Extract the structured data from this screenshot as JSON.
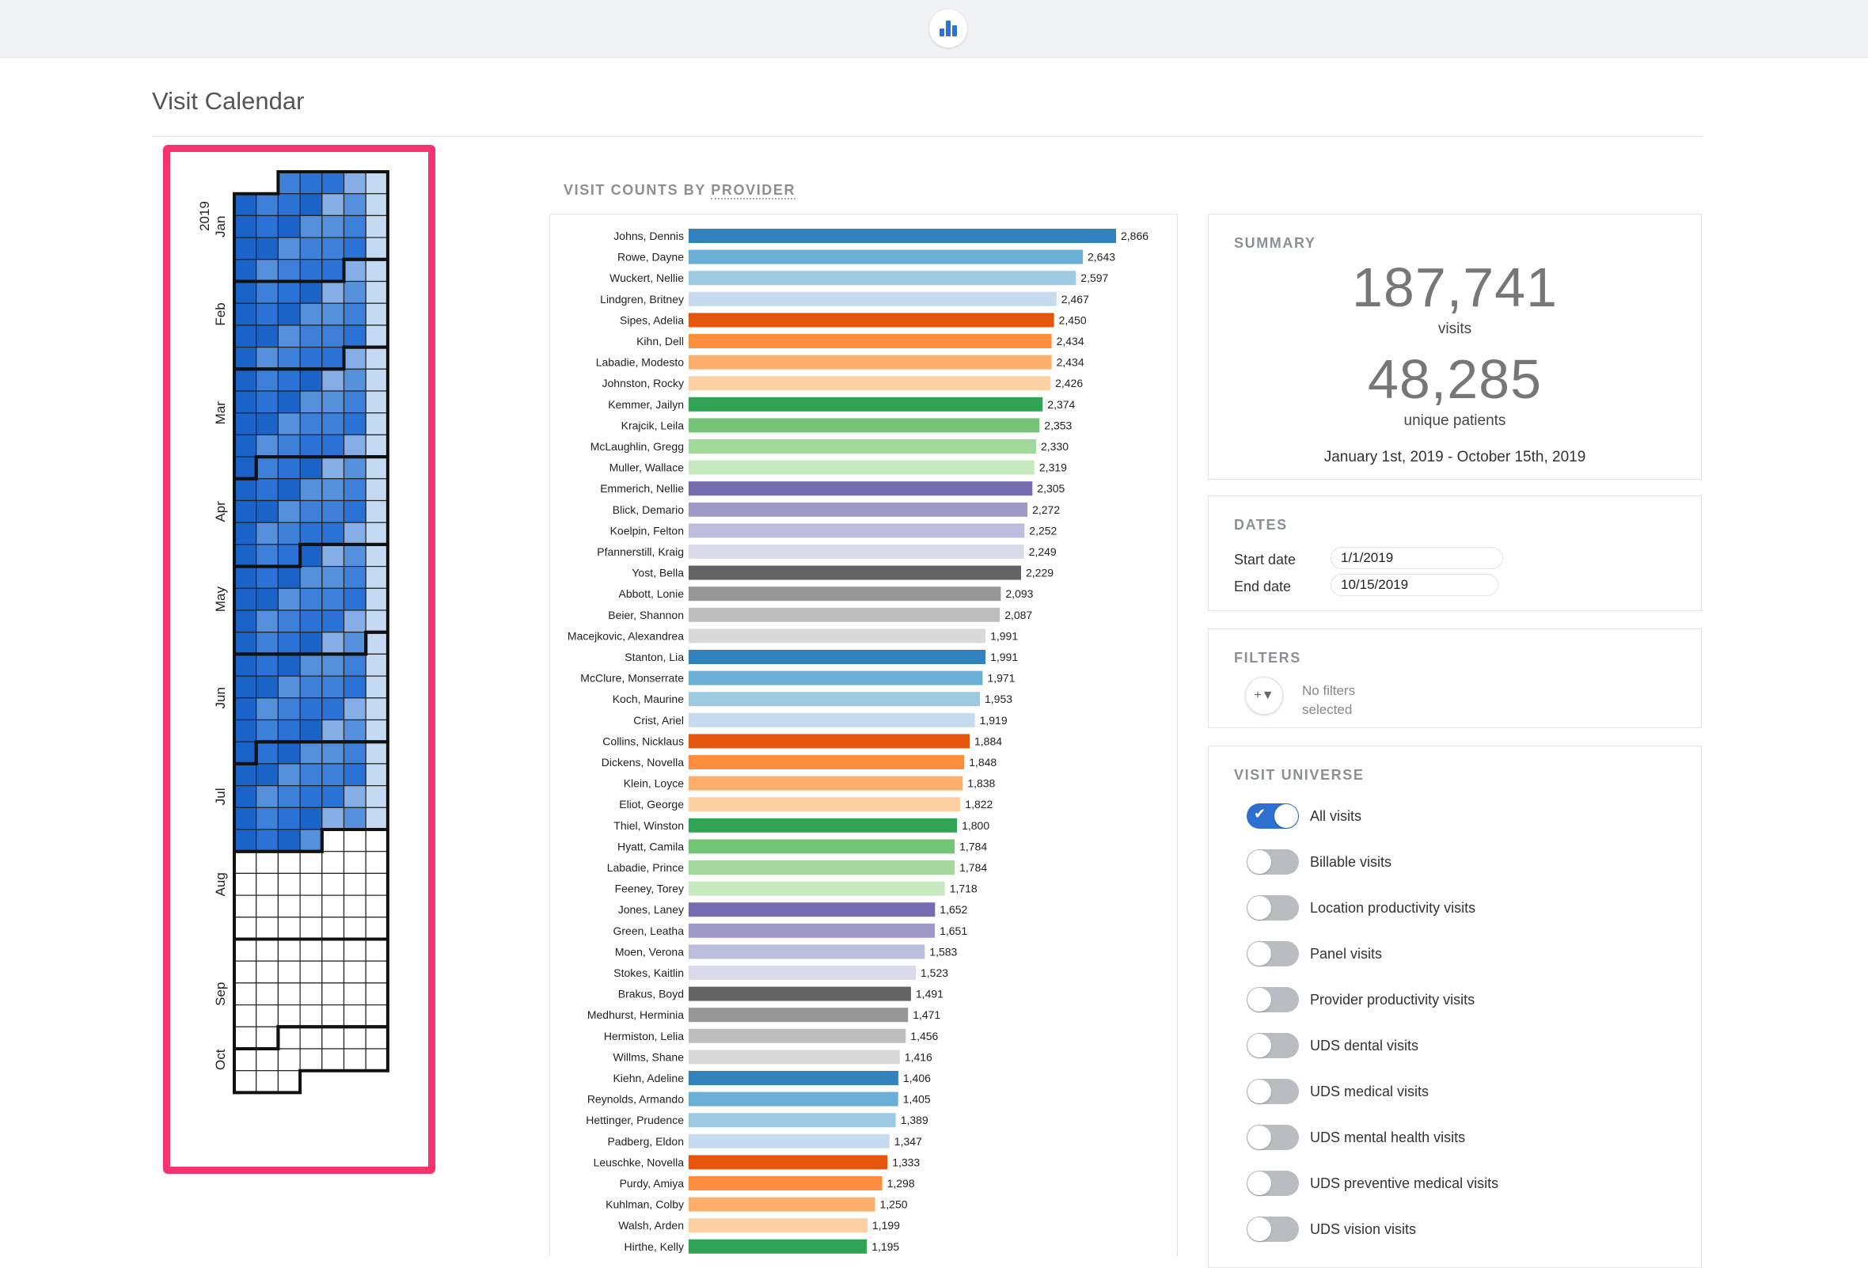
{
  "page": {
    "title": "Visit Calendar"
  },
  "calendar": {
    "year": "2019",
    "months": [
      "Jan",
      "Feb",
      "Mar",
      "Apr",
      "May",
      "Jun",
      "Jul",
      "Aug",
      "Sep",
      "Oct"
    ]
  },
  "chart_section": {
    "label_prefix": "VISIT COUNTS BY ",
    "label_link": "PROVIDER"
  },
  "chart_data": {
    "type": "bar",
    "orientation": "horizontal",
    "categories": [
      "Johns, Dennis",
      "Rowe, Dayne",
      "Wuckert, Nellie",
      "Lindgren, Britney",
      "Sipes, Adelia",
      "Kihn, Dell",
      "Labadie, Modesto",
      "Johnston, Rocky",
      "Kemmer, Jailyn",
      "Krajcik, Leila",
      "McLaughlin, Gregg",
      "Muller, Wallace",
      "Emmerich, Nellie",
      "Blick, Demario",
      "Koelpin, Felton",
      "Pfannerstill, Kraig",
      "Yost, Bella",
      "Abbott, Lonie",
      "Beier, Shannon",
      "Macejkovic, Alexandrea",
      "Stanton, Lia",
      "McClure, Monserrate",
      "Koch, Maurine",
      "Crist, Ariel",
      "Collins, Nicklaus",
      "Dickens, Novella",
      "Klein, Loyce",
      "Eliot, George",
      "Thiel, Winston",
      "Hyatt, Camila",
      "Labadie, Prince",
      "Feeney, Torey",
      "Jones, Laney",
      "Green, Leatha",
      "Moen, Verona",
      "Stokes, Kaitlin",
      "Brakus, Boyd",
      "Medhurst, Herminia",
      "Hermiston, Lelia",
      "Willms, Shane",
      "Kiehn, Adeline",
      "Reynolds, Armando",
      "Hettinger, Prudence",
      "Padberg, Eldon",
      "Leuschke, Novella",
      "Purdy, Amiya",
      "Kuhlman, Colby",
      "Walsh, Arden",
      "Hirthe, Kelly"
    ],
    "values": [
      2866,
      2643,
      2597,
      2467,
      2450,
      2434,
      2434,
      2426,
      2374,
      2353,
      2330,
      2319,
      2305,
      2272,
      2252,
      2249,
      2229,
      2093,
      2087,
      1991,
      1991,
      1971,
      1953,
      1919,
      1884,
      1848,
      1838,
      1822,
      1800,
      1784,
      1784,
      1718,
      1652,
      1651,
      1583,
      1523,
      1491,
      1471,
      1456,
      1416,
      1406,
      1405,
      1389,
      1347,
      1333,
      1298,
      1250,
      1199,
      1195
    ],
    "value_labels": [
      "2,866",
      "2,643",
      "2,597",
      "2,467",
      "2,450",
      "2,434",
      "2,434",
      "2,426",
      "2,374",
      "2,353",
      "2,330",
      "2,319",
      "2,305",
      "2,272",
      "2,252",
      "2,249",
      "2,229",
      "2,093",
      "2,087",
      "1,991",
      "1,991",
      "1,971",
      "1,953",
      "1,919",
      "1,884",
      "1,848",
      "1,838",
      "1,822",
      "1,800",
      "1,784",
      "1,784",
      "1,718",
      "1,652",
      "1,651",
      "1,583",
      "1,523",
      "1,491",
      "1,471",
      "1,456",
      "1,416",
      "1,406",
      "1,405",
      "1,389",
      "1,347",
      "1,333",
      "1,298",
      "1,250",
      "1,199",
      "1,195"
    ],
    "palette": [
      "#3182bd",
      "#6baed6",
      "#9ecae1",
      "#c6dbef",
      "#e6550d",
      "#fd8d3c",
      "#fdae6b",
      "#fdd0a2",
      "#31a354",
      "#74c476",
      "#a1d99b",
      "#c7e9c0",
      "#756bb1",
      "#9e9ac8",
      "#bcbddc",
      "#dadaeb",
      "#636363",
      "#969696",
      "#bdbdbd",
      "#d9d9d9"
    ],
    "xlim": [
      0,
      2866
    ]
  },
  "summary": {
    "label": "SUMMARY",
    "visits": "187,741",
    "visits_caption": "visits",
    "patients": "48,285",
    "patients_caption": "unique patients",
    "date_range": "January 1st, 2019 - October 15th, 2019"
  },
  "dates": {
    "label": "DATES",
    "start_label": "Start date",
    "start_value": "1/1/2019",
    "end_label": "End date",
    "end_value": "10/15/2019"
  },
  "filters": {
    "label": "FILTERS",
    "add_icon": "+▼",
    "empty_text": "No filters selected"
  },
  "visit_universe": {
    "label": "VISIT UNIVERSE",
    "options": [
      {
        "label": "All visits",
        "on": true
      },
      {
        "label": "Billable visits",
        "on": false
      },
      {
        "label": "Location productivity visits",
        "on": false
      },
      {
        "label": "Panel visits",
        "on": false
      },
      {
        "label": "Provider productivity visits",
        "on": false
      },
      {
        "label": "UDS dental visits",
        "on": false
      },
      {
        "label": "UDS medical visits",
        "on": false
      },
      {
        "label": "UDS mental health visits",
        "on": false
      },
      {
        "label": "UDS preventive medical visits",
        "on": false
      },
      {
        "label": "UDS vision visits",
        "on": false
      }
    ]
  },
  "colors": {
    "highlight": "#f7336f",
    "toggle_on": "#2e6fd1"
  }
}
